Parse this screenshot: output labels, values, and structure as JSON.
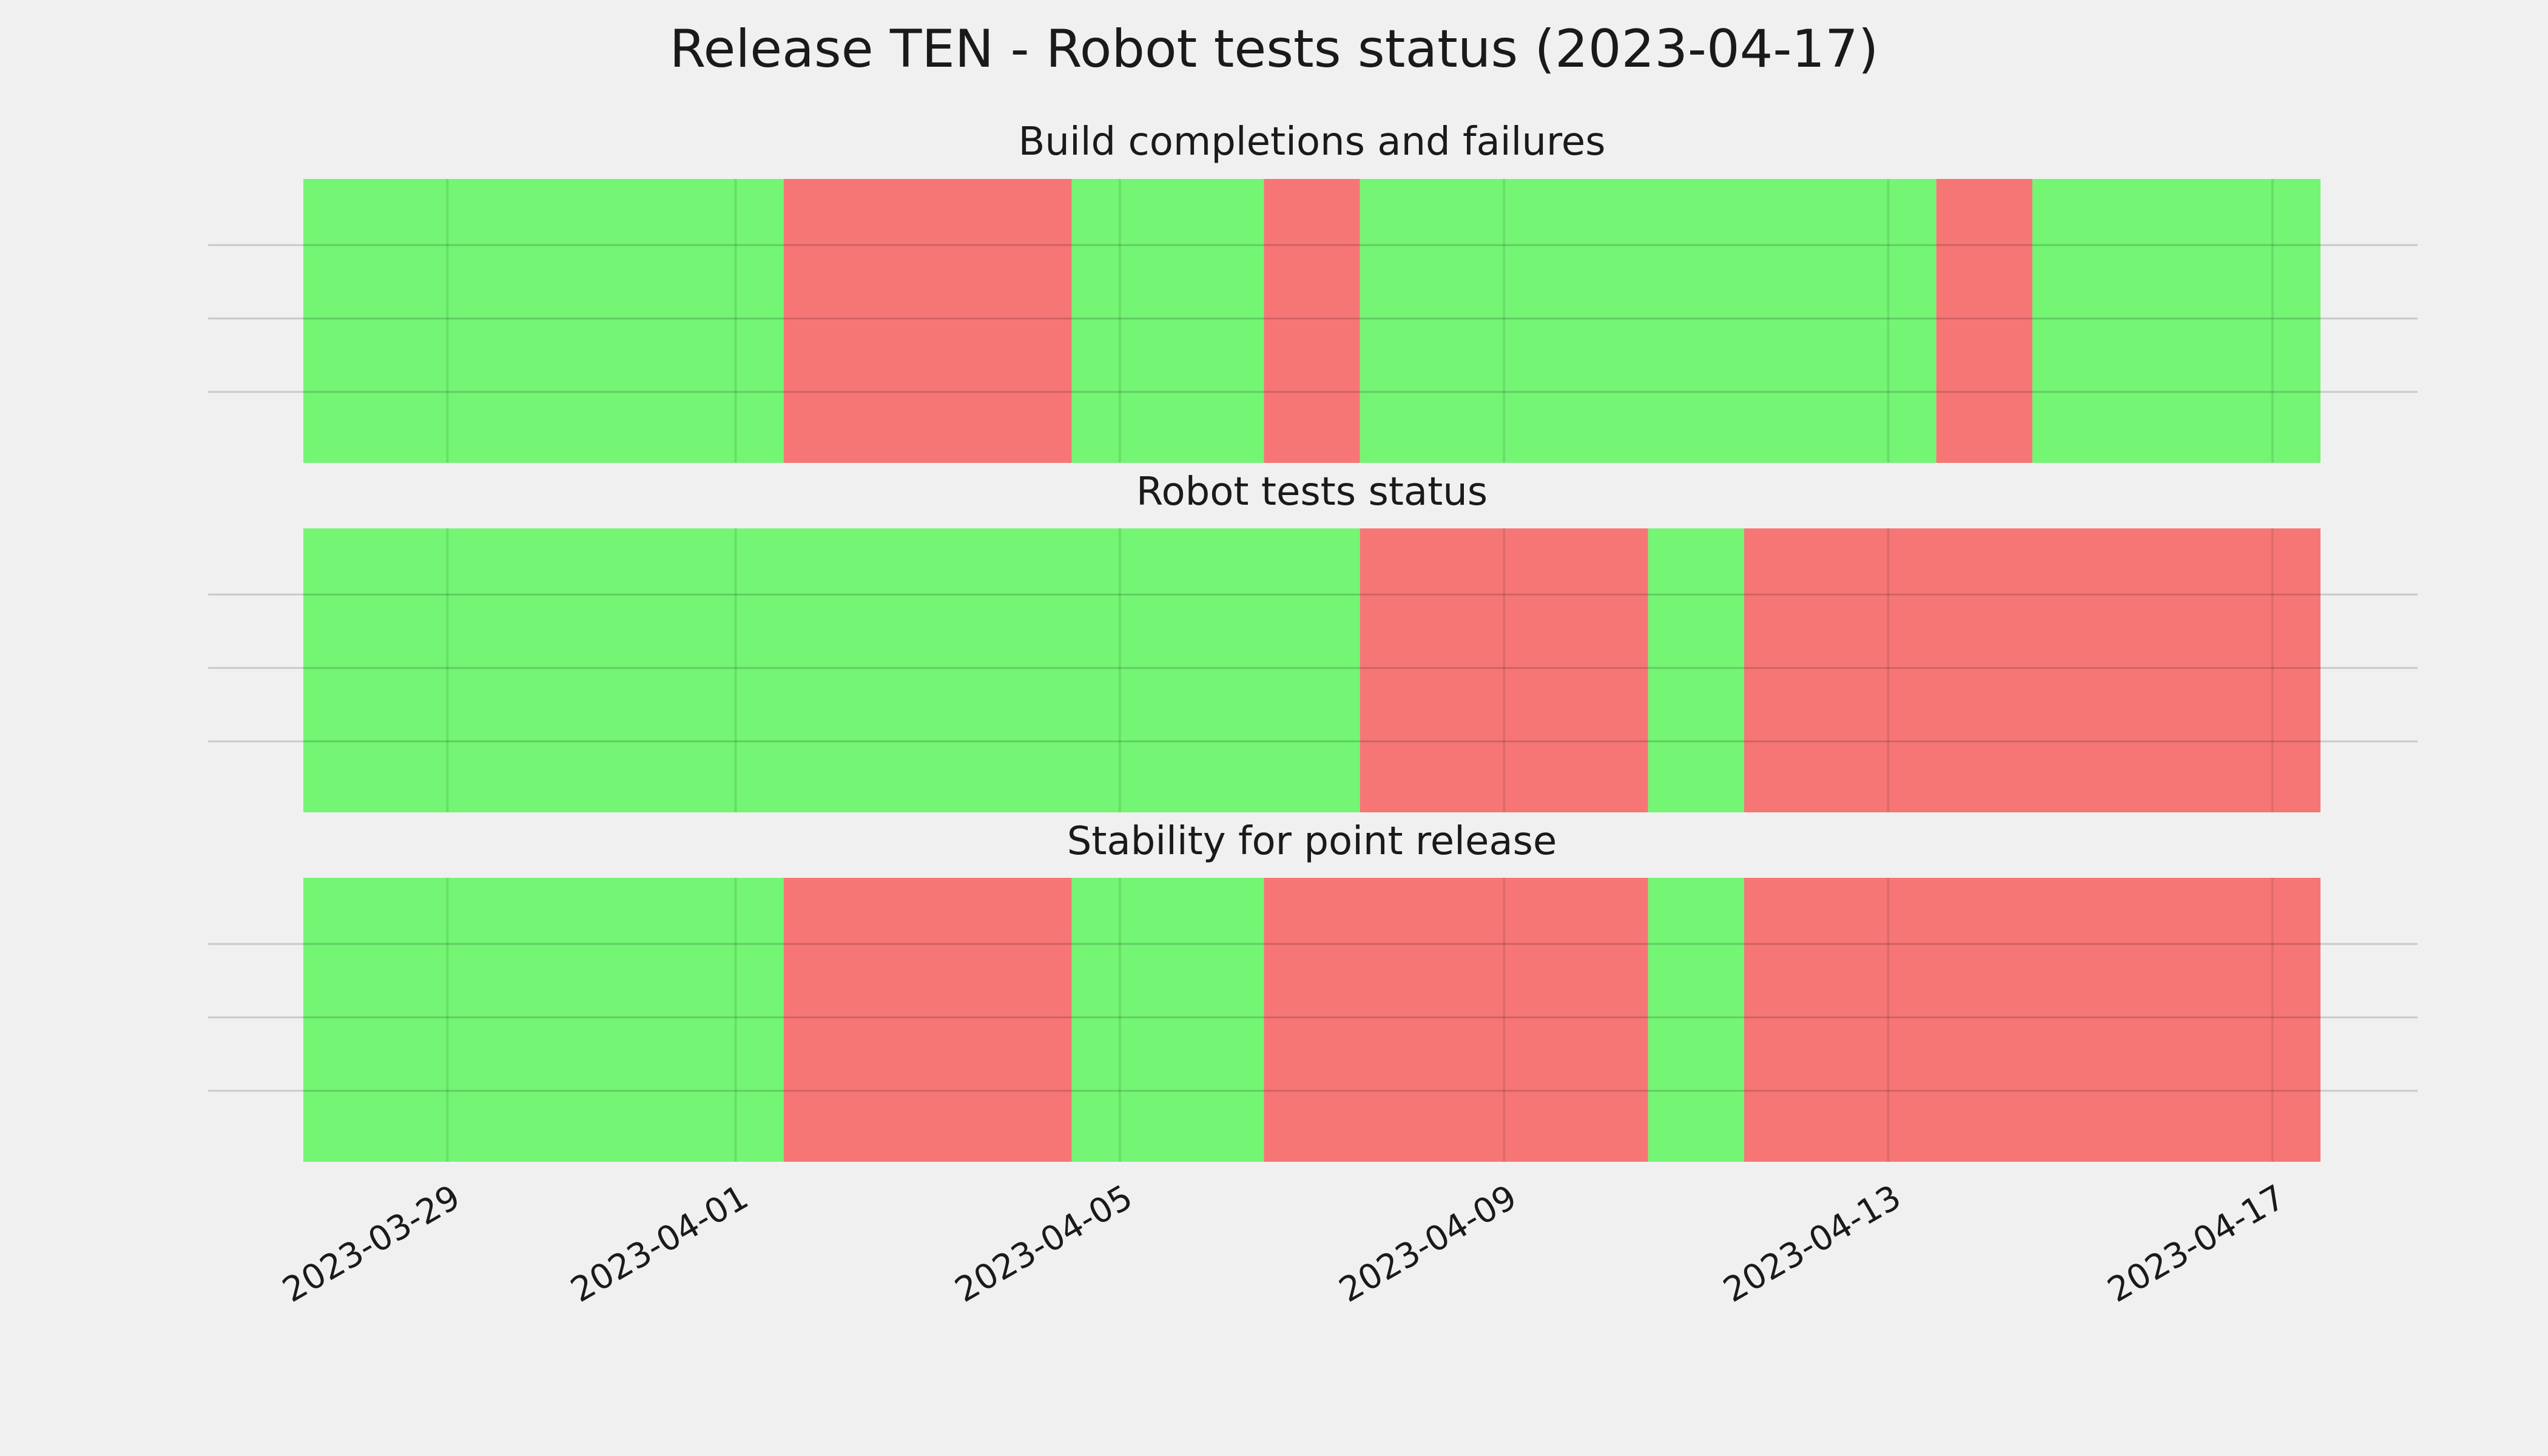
{
  "chart_data": {
    "title": "Release TEN - Robot tests status (2023-04-17)",
    "type": "timeline-status",
    "xlim": [
      "2023-03-27 12:00",
      "2023-04-17 12:00"
    ],
    "x_ticks": [
      "2023-03-29",
      "2023-04-01",
      "2023-04-05",
      "2023-04-09",
      "2023-04-13",
      "2023-04-17"
    ],
    "x_tick_label_rotation": -30,
    "y_gridlines": 3,
    "grid": true,
    "colors": {
      "pass": "#74f574",
      "fail": "#f67676",
      "background": "#f0f0f0"
    },
    "panels": [
      {
        "title": "Build completions and failures",
        "segments": [
          {
            "start": "2023-03-27 12:00",
            "end": "2023-04-01 12:00",
            "status": "pass"
          },
          {
            "start": "2023-04-01 12:00",
            "end": "2023-04-04 12:00",
            "status": "fail"
          },
          {
            "start": "2023-04-04 12:00",
            "end": "2023-04-06 12:00",
            "status": "pass"
          },
          {
            "start": "2023-04-06 12:00",
            "end": "2023-04-07 12:00",
            "status": "fail"
          },
          {
            "start": "2023-04-07 12:00",
            "end": "2023-04-13 12:00",
            "status": "pass"
          },
          {
            "start": "2023-04-13 12:00",
            "end": "2023-04-14 12:00",
            "status": "fail"
          },
          {
            "start": "2023-04-14 12:00",
            "end": "2023-04-17 12:00",
            "status": "pass"
          }
        ]
      },
      {
        "title": "Robot tests status",
        "segments": [
          {
            "start": "2023-03-27 12:00",
            "end": "2023-04-07 12:00",
            "status": "pass"
          },
          {
            "start": "2023-04-07 12:00",
            "end": "2023-04-10 12:00",
            "status": "fail"
          },
          {
            "start": "2023-04-10 12:00",
            "end": "2023-04-11 12:00",
            "status": "pass"
          },
          {
            "start": "2023-04-11 12:00",
            "end": "2023-04-17 12:00",
            "status": "fail"
          }
        ]
      },
      {
        "title": "Stability for point release",
        "segments": [
          {
            "start": "2023-03-27 12:00",
            "end": "2023-04-01 12:00",
            "status": "pass"
          },
          {
            "start": "2023-04-01 12:00",
            "end": "2023-04-04 12:00",
            "status": "fail"
          },
          {
            "start": "2023-04-04 12:00",
            "end": "2023-04-06 12:00",
            "status": "pass"
          },
          {
            "start": "2023-04-06 12:00",
            "end": "2023-04-10 12:00",
            "status": "fail"
          },
          {
            "start": "2023-04-10 12:00",
            "end": "2023-04-11 12:00",
            "status": "pass"
          },
          {
            "start": "2023-04-11 12:00",
            "end": "2023-04-17 12:00",
            "status": "fail"
          }
        ]
      }
    ]
  }
}
